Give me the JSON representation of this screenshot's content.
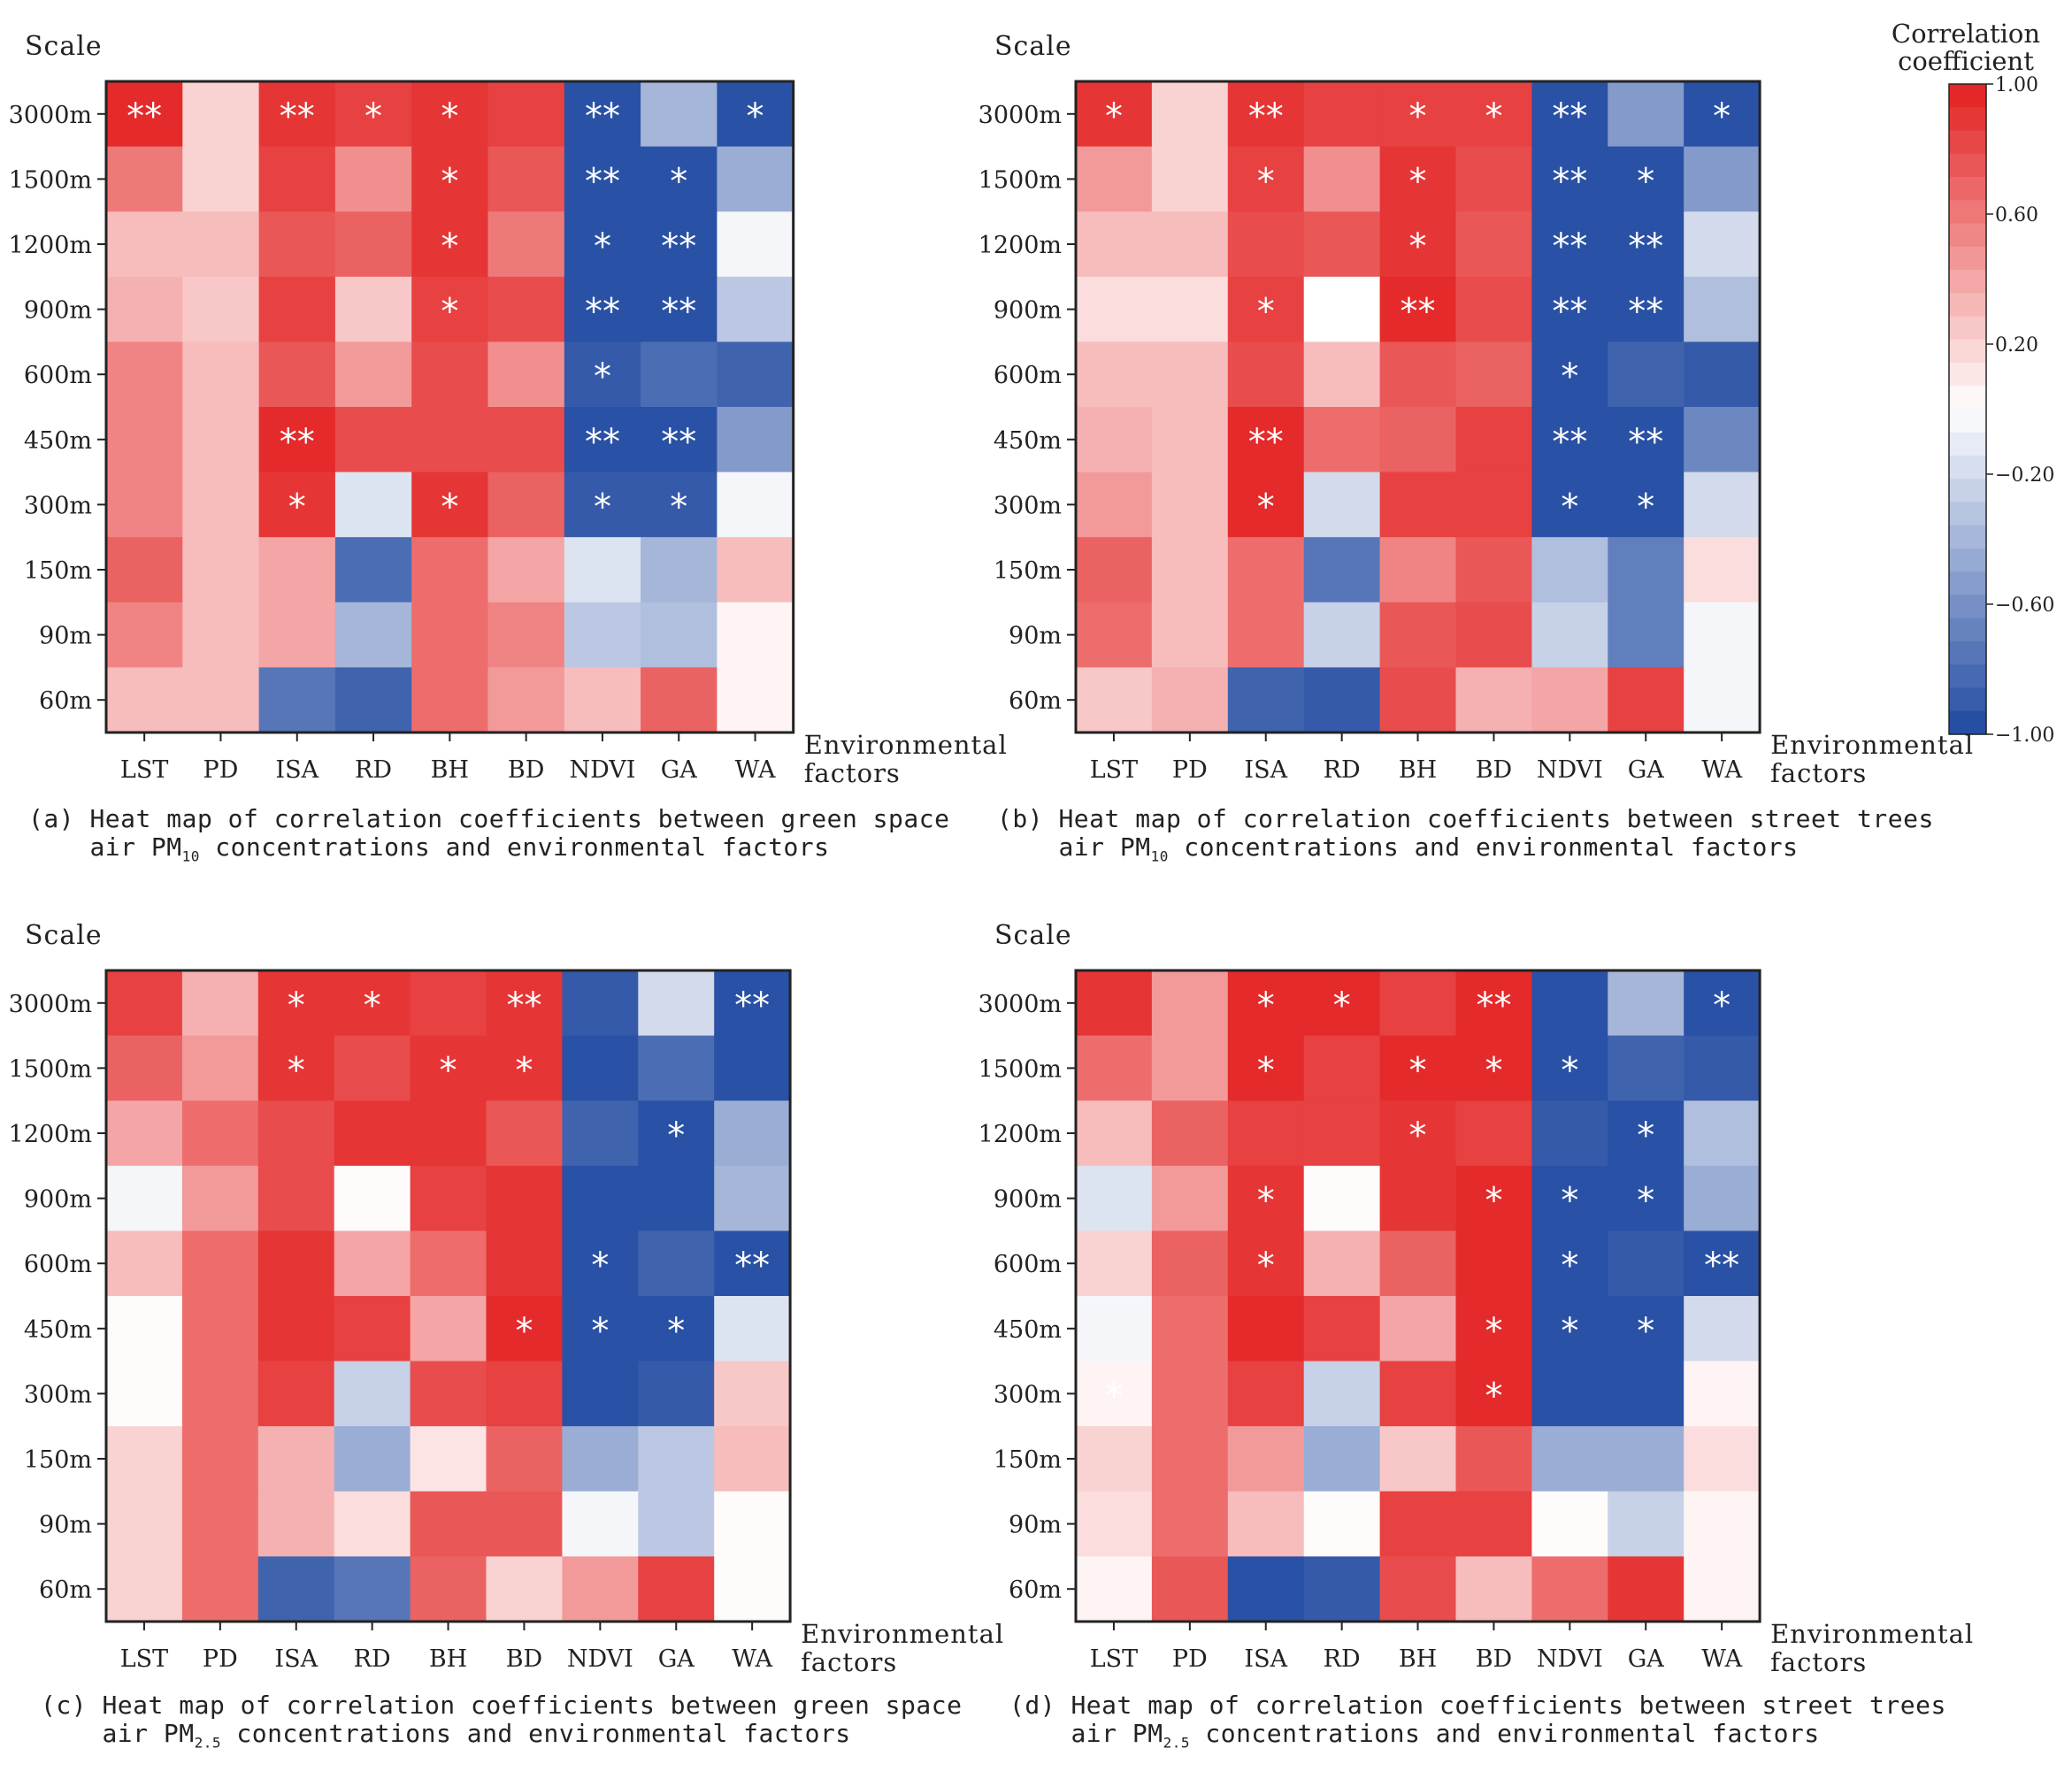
{
  "scale_axis_label": "Scale",
  "x_axis_label_line1": "Environmental",
  "x_axis_label_line2": "factors",
  "colorbar": {
    "title_line1": "Correlation",
    "title_line2": "coefficient",
    "tick_labels": [
      "1.00",
      "0.60",
      "0.20",
      "−0.20",
      "−0.60",
      "−1.00"
    ],
    "tick_values": [
      1.0,
      0.6,
      0.2,
      -0.2,
      -0.6,
      -1.0
    ],
    "high_color": "#e31f1f",
    "low_color": "#1e48a0",
    "mid_color": "#ffffff"
  },
  "captions": [
    {
      "prefix": "(a)",
      "line1": "Heat map of correlation coefficients between green space",
      "line2_a": "air PM",
      "line2_sub": "10",
      "line2_b": " concentrations and environmental factors"
    },
    {
      "prefix": "(b)",
      "line1": "Heat map of correlation coefficients between street trees",
      "line2_a": "air PM",
      "line2_sub": "10",
      "line2_b": " concentrations and environmental factors"
    },
    {
      "prefix": "(c)",
      "line1": "Heat map of correlation coefficients between green space",
      "line2_a": "air PM",
      "line2_sub": "2.5",
      "line2_b": " concentrations and environmental factors"
    },
    {
      "prefix": "(d)",
      "line1": "Heat map of correlation coefficients between street trees",
      "line2_a": "air PM",
      "line2_sub": "2.5",
      "line2_b": " concentrations and environmental factors"
    }
  ],
  "chart_data": [
    {
      "type": "heatmap",
      "title": "(a) Heat map of correlation coefficients between green space air PM10 concentrations and environmental factors",
      "x": [
        "LST",
        "PD",
        "ISA",
        "RD",
        "BH",
        "BD",
        "NDVI",
        "GA",
        "WA"
      ],
      "y": [
        "3000m",
        "1500m",
        "1200m",
        "900m",
        "600m",
        "450m",
        "300m",
        "150m",
        "90m",
        "60m"
      ],
      "values": [
        [
          0.95,
          0.2,
          0.9,
          0.85,
          0.9,
          0.85,
          -0.95,
          -0.4,
          -0.95
        ],
        [
          0.6,
          0.2,
          0.85,
          0.5,
          0.9,
          0.75,
          -0.95,
          -0.95,
          -0.45
        ],
        [
          0.3,
          0.3,
          0.75,
          0.7,
          0.9,
          0.6,
          -0.95,
          -0.95,
          -0.05
        ],
        [
          0.35,
          0.25,
          0.85,
          0.25,
          0.85,
          0.8,
          -0.95,
          -0.95,
          -0.3
        ],
        [
          0.55,
          0.3,
          0.75,
          0.45,
          0.8,
          0.5,
          -0.9,
          -0.8,
          -0.85
        ],
        [
          0.55,
          0.3,
          0.95,
          0.8,
          0.8,
          0.8,
          -0.95,
          -0.95,
          -0.55
        ],
        [
          0.55,
          0.3,
          0.9,
          -0.15,
          0.9,
          0.7,
          -0.9,
          -0.9,
          -0.05
        ],
        [
          0.7,
          0.3,
          0.4,
          -0.8,
          0.65,
          0.4,
          -0.15,
          -0.4,
          0.3
        ],
        [
          0.55,
          0.3,
          0.4,
          -0.4,
          0.65,
          0.55,
          -0.3,
          -0.35,
          0.05
        ],
        [
          0.3,
          0.3,
          -0.75,
          -0.85,
          0.65,
          0.45,
          0.3,
          0.7,
          0.05
        ]
      ],
      "significance": [
        [
          "**",
          "",
          "**",
          "*",
          "*",
          "",
          "**",
          "",
          "*"
        ],
        [
          "",
          "",
          "",
          "",
          "*",
          "",
          "**",
          "*",
          ""
        ],
        [
          "",
          "",
          "",
          "",
          "*",
          "",
          "*",
          "**",
          ""
        ],
        [
          "",
          "",
          "",
          "",
          "*",
          "",
          "**",
          "**",
          ""
        ],
        [
          "",
          "",
          "",
          "",
          "",
          "",
          "*",
          "",
          ""
        ],
        [
          "",
          "",
          "**",
          "",
          "",
          "",
          "**",
          "**",
          ""
        ],
        [
          "",
          "",
          "*",
          "",
          "*",
          "",
          "*",
          "*",
          ""
        ],
        [
          "",
          "",
          "",
          "",
          "",
          "",
          "",
          "",
          ""
        ],
        [
          "",
          "",
          "",
          "",
          "",
          "",
          "",
          "",
          ""
        ],
        [
          "",
          "",
          "",
          "",
          "",
          "",
          "",
          "",
          ""
        ]
      ],
      "xlabel": "Environmental factors",
      "ylabel": "Scale",
      "zlim": [
        -1.0,
        1.0
      ]
    },
    {
      "type": "heatmap",
      "title": "(b) Heat map of correlation coefficients between street trees air PM10 concentrations and environmental factors",
      "x": [
        "LST",
        "PD",
        "ISA",
        "RD",
        "BH",
        "BD",
        "NDVI",
        "GA",
        "WA"
      ],
      "y": [
        "3000m",
        "1500m",
        "1200m",
        "900m",
        "600m",
        "450m",
        "300m",
        "150m",
        "90m",
        "60m"
      ],
      "values": [
        [
          0.9,
          0.2,
          0.9,
          0.85,
          0.85,
          0.85,
          -0.95,
          -0.55,
          -0.95
        ],
        [
          0.45,
          0.2,
          0.85,
          0.5,
          0.9,
          0.8,
          -0.95,
          -0.95,
          -0.55
        ],
        [
          0.3,
          0.3,
          0.8,
          0.75,
          0.9,
          0.75,
          -0.95,
          -0.95,
          -0.2
        ],
        [
          0.15,
          0.15,
          0.85,
          0.0,
          0.95,
          0.8,
          -0.95,
          -0.95,
          -0.35
        ],
        [
          0.3,
          0.3,
          0.8,
          0.3,
          0.75,
          0.7,
          -0.95,
          -0.85,
          -0.9
        ],
        [
          0.35,
          0.3,
          0.95,
          0.65,
          0.7,
          0.85,
          -0.95,
          -0.95,
          -0.65
        ],
        [
          0.45,
          0.3,
          0.95,
          -0.2,
          0.85,
          0.85,
          -0.95,
          -0.95,
          -0.2
        ],
        [
          0.7,
          0.3,
          0.65,
          -0.75,
          0.55,
          0.75,
          -0.35,
          -0.7,
          0.15
        ],
        [
          0.65,
          0.3,
          0.65,
          -0.25,
          0.75,
          0.8,
          -0.25,
          -0.7,
          -0.05
        ],
        [
          0.25,
          0.35,
          -0.85,
          -0.9,
          0.8,
          0.35,
          0.4,
          0.85,
          -0.05
        ]
      ],
      "significance": [
        [
          "*",
          "",
          "**",
          "",
          "*",
          "*",
          "**",
          "",
          "*"
        ],
        [
          "",
          "",
          "*",
          "",
          "*",
          "",
          "**",
          "*",
          ""
        ],
        [
          "",
          "",
          "",
          "",
          "*",
          "",
          "**",
          "**",
          ""
        ],
        [
          "",
          "",
          "*",
          "",
          "**",
          "",
          "**",
          "**",
          ""
        ],
        [
          "",
          "",
          "",
          "",
          "",
          "",
          "*",
          "",
          ""
        ],
        [
          "",
          "",
          "**",
          "",
          "",
          "",
          "**",
          "**",
          ""
        ],
        [
          "",
          "",
          "*",
          "",
          "",
          "",
          "*",
          "*",
          ""
        ],
        [
          "",
          "",
          "",
          "",
          "",
          "",
          "",
          "",
          ""
        ],
        [
          "",
          "",
          "",
          "",
          "",
          "",
          "",
          "",
          ""
        ],
        [
          "",
          "",
          "",
          "",
          "",
          "",
          "",
          "",
          ""
        ]
      ],
      "xlabel": "Environmental factors",
      "ylabel": "Scale",
      "zlim": [
        -1.0,
        1.0
      ]
    },
    {
      "type": "heatmap",
      "title": "(c) Heat map of correlation coefficients between green space air PM2.5 concentrations and environmental factors",
      "x": [
        "LST",
        "PD",
        "ISA",
        "RD",
        "BH",
        "BD",
        "NDVI",
        "GA",
        "WA"
      ],
      "y": [
        "3000m",
        "1500m",
        "1200m",
        "900m",
        "600m",
        "450m",
        "300m",
        "150m",
        "90m",
        "60m"
      ],
      "values": [
        [
          0.85,
          0.35,
          0.9,
          0.9,
          0.85,
          0.9,
          -0.9,
          -0.2,
          -0.95
        ],
        [
          0.7,
          0.45,
          0.9,
          0.8,
          0.9,
          0.9,
          -0.95,
          -0.8,
          -0.95
        ],
        [
          0.4,
          0.65,
          0.8,
          0.9,
          0.9,
          0.75,
          -0.85,
          -0.95,
          -0.45
        ],
        [
          -0.05,
          0.45,
          0.8,
          0.02,
          0.85,
          0.9,
          -0.95,
          -0.95,
          -0.4
        ],
        [
          0.3,
          0.65,
          0.9,
          0.4,
          0.65,
          0.9,
          -0.95,
          -0.85,
          -0.95
        ],
        [
          0.02,
          0.65,
          0.9,
          0.85,
          0.4,
          0.95,
          -0.95,
          -0.95,
          -0.15
        ],
        [
          0.02,
          0.65,
          0.85,
          -0.25,
          0.8,
          0.85,
          -0.95,
          -0.9,
          0.25
        ],
        [
          0.2,
          0.65,
          0.35,
          -0.45,
          0.12,
          0.7,
          -0.45,
          -0.3,
          0.3
        ],
        [
          0.2,
          0.65,
          0.35,
          0.15,
          0.75,
          0.75,
          -0.05,
          -0.3,
          0.02
        ],
        [
          0.2,
          0.65,
          -0.85,
          -0.75,
          0.7,
          0.2,
          0.45,
          0.85,
          0.02
        ]
      ],
      "significance": [
        [
          "",
          "",
          "*",
          "*",
          "",
          "**",
          "",
          "",
          "**"
        ],
        [
          "",
          "",
          "*",
          "",
          "*",
          "*",
          "",
          "",
          ""
        ],
        [
          "",
          "",
          "",
          "",
          "",
          "",
          "",
          "*",
          ""
        ],
        [
          "",
          "",
          "",
          "",
          "",
          "",
          "",
          "",
          ""
        ],
        [
          "",
          "",
          "",
          "",
          "",
          "",
          "*",
          "",
          "**"
        ],
        [
          "",
          "",
          "",
          "",
          "",
          "*",
          "*",
          "*",
          ""
        ],
        [
          "",
          "",
          "",
          "",
          "",
          "",
          "",
          "",
          ""
        ],
        [
          "",
          "",
          "",
          "",
          "",
          "",
          "",
          "",
          ""
        ],
        [
          "",
          "",
          "",
          "",
          "",
          "",
          "",
          "",
          ""
        ],
        [
          "",
          "",
          "",
          "",
          "",
          "",
          "",
          "",
          ""
        ]
      ],
      "xlabel": "Environmental factors",
      "ylabel": "Scale",
      "zlim": [
        -1.0,
        1.0
      ]
    },
    {
      "type": "heatmap",
      "title": "(d) Heat map of correlation coefficients between street trees air PM2.5 concentrations and environmental factors",
      "x": [
        "LST",
        "PD",
        "ISA",
        "RD",
        "BH",
        "BD",
        "NDVI",
        "GA",
        "WA"
      ],
      "y": [
        "3000m",
        "1500m",
        "1200m",
        "900m",
        "600m",
        "450m",
        "300m",
        "150m",
        "90m",
        "60m"
      ],
      "values": [
        [
          0.9,
          0.45,
          0.95,
          0.95,
          0.85,
          0.95,
          -0.95,
          -0.4,
          -0.95
        ],
        [
          0.65,
          0.45,
          0.95,
          0.85,
          0.95,
          0.95,
          -0.95,
          -0.85,
          -0.9
        ],
        [
          0.3,
          0.7,
          0.85,
          0.85,
          0.9,
          0.85,
          -0.9,
          -0.95,
          -0.35
        ],
        [
          -0.15,
          0.45,
          0.9,
          0.02,
          0.9,
          0.95,
          -0.95,
          -0.95,
          -0.45
        ],
        [
          0.2,
          0.7,
          0.9,
          0.35,
          0.7,
          0.95,
          -0.95,
          -0.9,
          -0.95
        ],
        [
          -0.05,
          0.65,
          0.95,
          0.85,
          0.4,
          0.95,
          -0.95,
          -0.95,
          -0.2
        ],
        [
          0.05,
          0.65,
          0.85,
          -0.25,
          0.85,
          0.95,
          -0.95,
          -0.95,
          0.05
        ],
        [
          0.2,
          0.65,
          0.45,
          -0.45,
          0.25,
          0.75,
          -0.45,
          -0.45,
          0.15
        ],
        [
          0.15,
          0.65,
          0.3,
          0.02,
          0.85,
          0.85,
          0.02,
          -0.25,
          0.05
        ],
        [
          0.05,
          0.75,
          -0.95,
          -0.9,
          0.8,
          0.3,
          0.65,
          0.9,
          0.05
        ]
      ],
      "significance": [
        [
          "",
          "",
          "*",
          "*",
          "",
          "**",
          "",
          "",
          "*"
        ],
        [
          "",
          "",
          "*",
          "",
          "*",
          "*",
          "*",
          "",
          ""
        ],
        [
          "",
          "",
          "",
          "",
          "*",
          "",
          "",
          "*",
          ""
        ],
        [
          "",
          "",
          "*",
          "",
          "",
          "*",
          "*",
          "*",
          ""
        ],
        [
          "",
          "",
          "*",
          "",
          "",
          "",
          "*",
          "",
          "**"
        ],
        [
          "",
          "",
          "",
          "",
          "",
          "*",
          "*",
          "*",
          ""
        ],
        [
          "*",
          "",
          "",
          "",
          "",
          "*",
          "",
          "",
          ""
        ],
        [
          "",
          "",
          "",
          "",
          "",
          "",
          "",
          "",
          ""
        ],
        [
          "",
          "",
          "",
          "",
          "",
          "",
          "",
          "",
          ""
        ],
        [
          "",
          "",
          "",
          "",
          "",
          "",
          "",
          "",
          ""
        ]
      ],
      "xlabel": "Environmental factors",
      "ylabel": "Scale",
      "zlim": [
        -1.0,
        1.0
      ]
    }
  ]
}
